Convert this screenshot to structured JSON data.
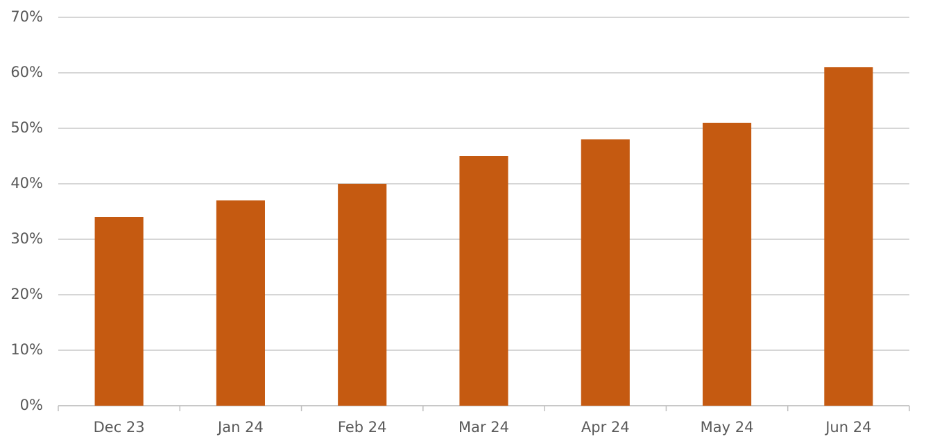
{
  "chart_data": {
    "type": "bar",
    "categories": [
      "Dec 23",
      "Jan 24",
      "Feb 24",
      "Mar 24",
      "Apr 24",
      "May 24",
      "Jun 24"
    ],
    "values": [
      34,
      37,
      40,
      45,
      48,
      51,
      61
    ],
    "color": "#c55a11",
    "ylim": [
      0,
      70
    ],
    "yticks": [
      {
        "value": 0,
        "label": "0%"
      },
      {
        "value": 10,
        "label": "10%"
      },
      {
        "value": 20,
        "label": "20%"
      },
      {
        "value": 30,
        "label": "30%"
      },
      {
        "value": 40,
        "label": "40%"
      },
      {
        "value": 50,
        "label": "50%"
      },
      {
        "value": 60,
        "label": "60%"
      },
      {
        "value": 70,
        "label": "70%"
      }
    ],
    "grid": true
  }
}
